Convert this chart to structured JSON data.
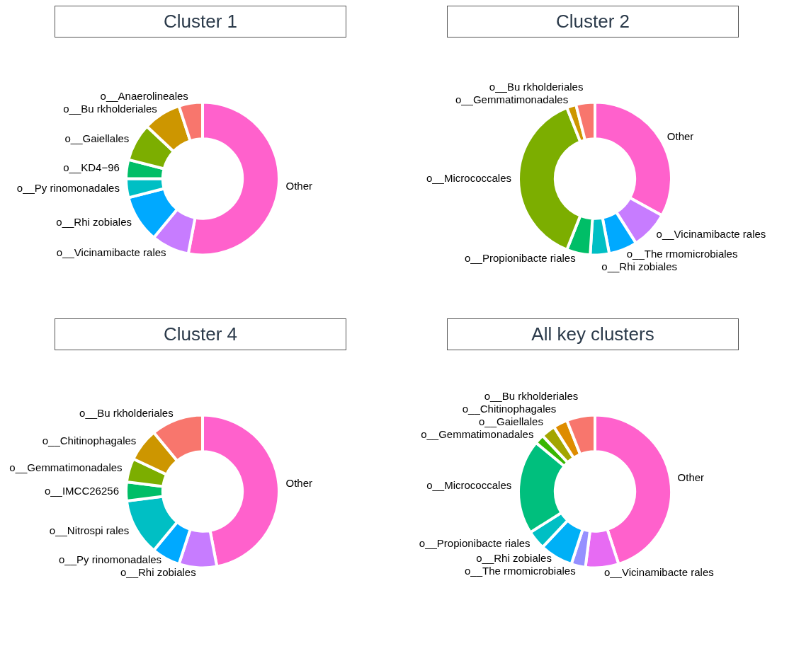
{
  "chart_data": [
    {
      "type": "donut",
      "title": "Cluster 1",
      "legend": false,
      "categories": [
        "Other",
        "o__Vicinamibacte rales",
        "o__Rhi zobiales",
        "o__Py rinomonadales",
        "o__KD4−96",
        "o__Gaiellales",
        "o__Bu rkholderiales",
        "o__Anaerolineales"
      ],
      "values": [
        53,
        8,
        10,
        4,
        4,
        8,
        8,
        5
      ],
      "colors": [
        "#ff61cc",
        "#c77cff",
        "#00a9ff",
        "#00bfc4",
        "#00be67",
        "#7cae00",
        "#cd9600",
        "#f8766d"
      ]
    },
    {
      "type": "donut",
      "title": "Cluster 2",
      "legend": false,
      "categories": [
        "Other",
        "o__Vicinamibacte rales",
        "o__The rmomicrobiales",
        "o__Rhi zobiales",
        "o__Propionibacte riales",
        "o__Micrococcales",
        "o__Gemmatimonadales",
        "o__Bu rkholderiales"
      ],
      "values": [
        33,
        8,
        6,
        4,
        5,
        38,
        2,
        4
      ],
      "colors": [
        "#ff61cc",
        "#c77cff",
        "#00a9ff",
        "#00bfc4",
        "#00be67",
        "#7cae00",
        "#cd9600",
        "#f8766d"
      ]
    },
    {
      "type": "donut",
      "title": "Cluster 4",
      "legend": false,
      "categories": [
        "Other",
        "o__Rhi zobiales",
        "o__Py rinomonadales",
        "o__Nitrospi rales",
        "o__IMCC26256",
        "o__Gemmatimonadales",
        "o__Chitinophagales",
        "o__Bu rkholderiales"
      ],
      "values": [
        47,
        8,
        6,
        12,
        4,
        5,
        7,
        11
      ],
      "colors": [
        "#ff61cc",
        "#c77cff",
        "#00a9ff",
        "#00bfc4",
        "#00be67",
        "#7cae00",
        "#cd9600",
        "#f8766d"
      ]
    },
    {
      "type": "donut",
      "title": "All key clusters",
      "legend": false,
      "categories": [
        "Other",
        "o__Vicinamibacte rales",
        "o__The rmomicrobiales",
        "o__Rhi zobiales",
        "o__Propionibacte riales",
        "o__Micrococcales",
        "o__Gemmatimonadales",
        "o__Gaiellales",
        "o__Chitinophagales",
        "o__Bu rkholderiales"
      ],
      "values": [
        45,
        7,
        3,
        7,
        4,
        20,
        2,
        3,
        3,
        6
      ],
      "colors": [
        "#ff61cc",
        "#e76bf3",
        "#9590ff",
        "#00b0f6",
        "#00bfc4",
        "#00bf7d",
        "#39b600",
        "#a3a500",
        "#de8c00",
        "#f8766d"
      ]
    }
  ]
}
